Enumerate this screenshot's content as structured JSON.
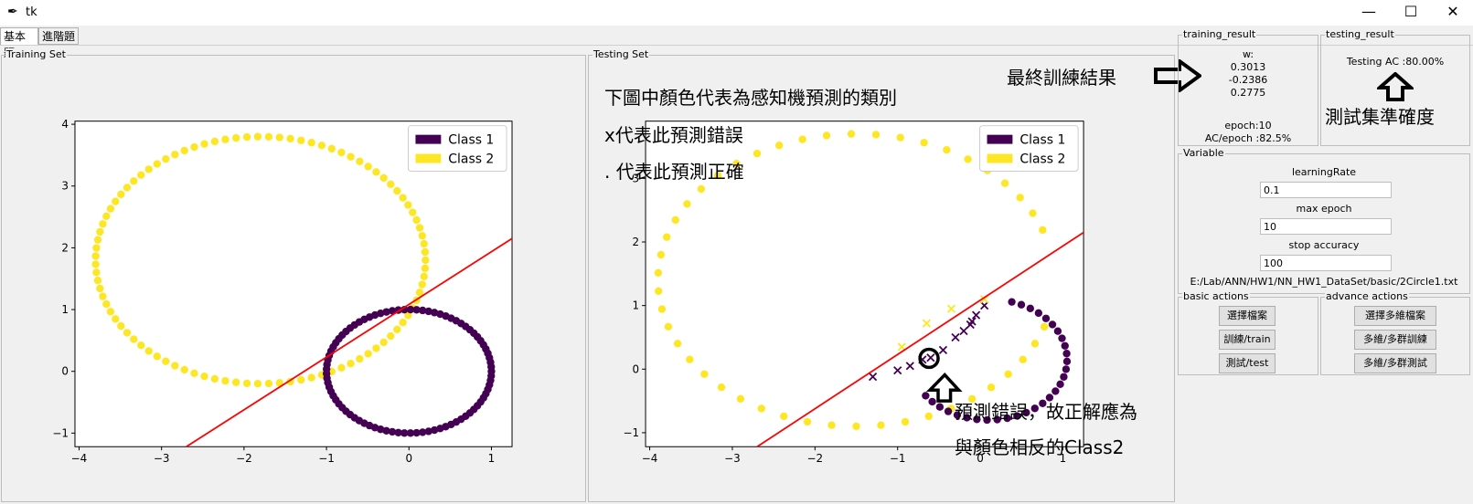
{
  "window": {
    "title": "tk",
    "min": "—",
    "max": "☐",
    "close": "✕"
  },
  "tabs": [
    {
      "label": "基本題"
    },
    {
      "label": "進階題"
    }
  ],
  "training_set": {
    "label": "Training Set",
    "chart_data": {
      "type": "scatter",
      "xlim": [
        -4.05,
        1.25
      ],
      "ylim": [
        -1.22,
        4.05
      ],
      "xticks": [
        -4,
        -3,
        -2,
        -1,
        0,
        1
      ],
      "yticks": [
        -1,
        0,
        1,
        2,
        3,
        4
      ],
      "legend_position": "top-right",
      "series": [
        {
          "name": "Class 1",
          "color": "#440154",
          "marker": "dot"
        },
        {
          "name": "Class 2",
          "color": "#fde725",
          "marker": "dot"
        }
      ],
      "decision_line": {
        "color": "#ff0000",
        "points": [
          [
            -2.7,
            -1.22
          ],
          [
            1.25,
            2.15
          ]
        ]
      }
    }
  },
  "testing_set": {
    "label": "Testing Set",
    "chart_data": {
      "type": "scatter",
      "xlim": [
        -4.05,
        1.25
      ],
      "ylim": [
        -1.22,
        3.9
      ],
      "xticks": [
        -4,
        -3,
        -2,
        -1,
        0,
        1
      ],
      "yticks": [
        -1,
        0,
        1,
        2,
        3
      ],
      "legend_position": "top-right",
      "series": [
        {
          "name": "Class 1",
          "color": "#440154",
          "marker": "dot"
        },
        {
          "name": "Class 2",
          "color": "#fde725",
          "marker": "dot"
        }
      ],
      "decision_line": {
        "color": "#ff0000",
        "points": [
          [
            -2.7,
            -1.22
          ],
          [
            1.25,
            2.15
          ]
        ]
      }
    },
    "annotations": {
      "note_title": "下圖中顏色代表為感知機預測的類別",
      "note_x": "x代表此預測錯誤",
      "note_dot": ". 代表此預測正確",
      "wrong_line1": "預測錯誤，故正解應為",
      "wrong_line2": "與顏色相反的Class2"
    }
  },
  "training_result": {
    "label": "training_result",
    "w_label": "w:",
    "w": [
      "0.3013",
      "-0.2386",
      "0.2775"
    ],
    "epoch": "epoch:10",
    "ac": "AC/epoch :82.5%",
    "annotation": "最終訓練結果"
  },
  "testing_result": {
    "label": "testing_result",
    "ac": "Testing AC :80.00%",
    "annotation": "測試集準確度"
  },
  "variable": {
    "label": "Variable",
    "lr_label": "learningRate",
    "lr_value": "0.1",
    "epoch_label": "max epoch",
    "epoch_value": "10",
    "acc_label": "stop accuracy",
    "acc_value": "100",
    "path": "E:/Lab/ANN/HW1/NN_HW1_DataSet/basic/2Circle1.txt"
  },
  "basic_actions": {
    "label": "basic actions",
    "buttons": [
      "選擇檔案",
      "訓練/train",
      "測試/test"
    ]
  },
  "advance_actions": {
    "label": "advance actions",
    "buttons": [
      "選擇多維檔案",
      "多維/多群訓練",
      "多維/多群測試"
    ]
  }
}
